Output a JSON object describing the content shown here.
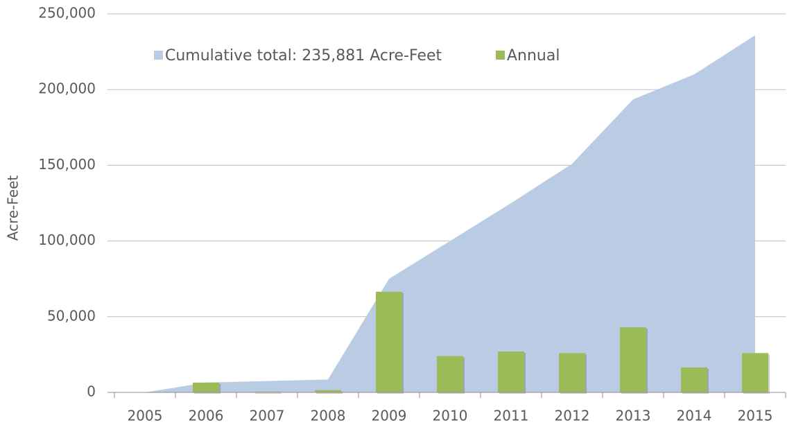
{
  "chart_data": {
    "type": "combo",
    "y_label": "Acre-Feet",
    "categories": [
      "2005",
      "2006",
      "2007",
      "2008",
      "2009",
      "2010",
      "2011",
      "2012",
      "2013",
      "2014",
      "2015"
    ],
    "series": [
      {
        "name": "Cumulative total: 235,881 Acre-Feet",
        "mark": "area",
        "color": "#b9cce4",
        "values": [
          0,
          6500,
          7500,
          8500,
          75000,
          100000,
          125000,
          151000,
          193500,
          210000,
          235881
        ]
      },
      {
        "name": "Annual",
        "mark": "bar",
        "color": "#9bbb59",
        "values": [
          0,
          6500,
          500,
          1500,
          66500,
          24000,
          27000,
          26000,
          43000,
          16500,
          26000
        ]
      }
    ],
    "ylim": [
      0,
      250000
    ],
    "yticks": [
      0,
      {
        "value": 50000,
        "label": "50,000"
      },
      {
        "value": 100000,
        "label": "100,000"
      },
      {
        "value": 150000,
        "label": "150,000"
      },
      {
        "value": 200000,
        "label": "200,000"
      },
      {
        "value": 250000,
        "label": "250,000"
      }
    ],
    "grid": true,
    "legend": "top"
  }
}
